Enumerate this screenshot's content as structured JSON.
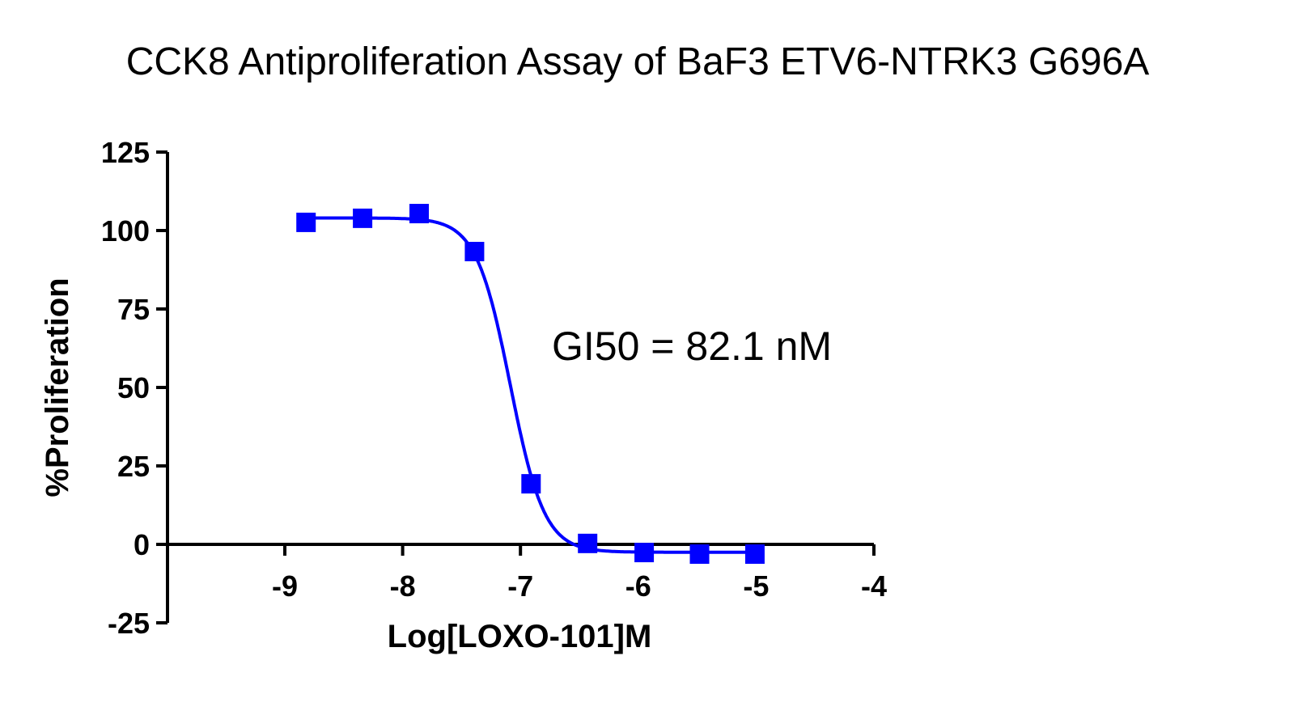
{
  "chart_data": {
    "type": "scatter",
    "title": "CCK8 Antiproliferation Assay of BaF3 ETV6-NTRK3 G696A",
    "xlabel": "Log[LOXO-101]M",
    "ylabel": "%Proliferation",
    "xlim": [
      -9.9,
      -4
    ],
    "ylim": [
      -25,
      125
    ],
    "x_ticks": [
      -9,
      -8,
      -7,
      -6,
      -5,
      -4
    ],
    "y_ticks": [
      -25,
      0,
      25,
      50,
      75,
      100,
      125
    ],
    "x_tick_labels": [
      "-9",
      "-8",
      "-7",
      "-6",
      "-5",
      "-4"
    ],
    "y_tick_labels": [
      "-25",
      "0",
      "25",
      "50",
      "75",
      "100",
      "125"
    ],
    "grid": false,
    "series": [
      {
        "marker": "square",
        "color": "#0000ff",
        "x": [
          -8.82,
          -8.34,
          -7.86,
          -7.39,
          -6.91,
          -6.43,
          -5.95,
          -5.48,
          -5.01
        ],
        "y": [
          102.6,
          103.9,
          105.4,
          93.3,
          19.3,
          0.3,
          -2.6,
          -3.1,
          -3.1
        ],
        "fit": {
          "model": "four-parameter logistic",
          "top": 104,
          "bottom": -2.5,
          "log_ic50": -7.086,
          "hill_slope": -3
        }
      }
    ],
    "annotations": [
      "GI50 = 82.1 nM"
    ]
  }
}
